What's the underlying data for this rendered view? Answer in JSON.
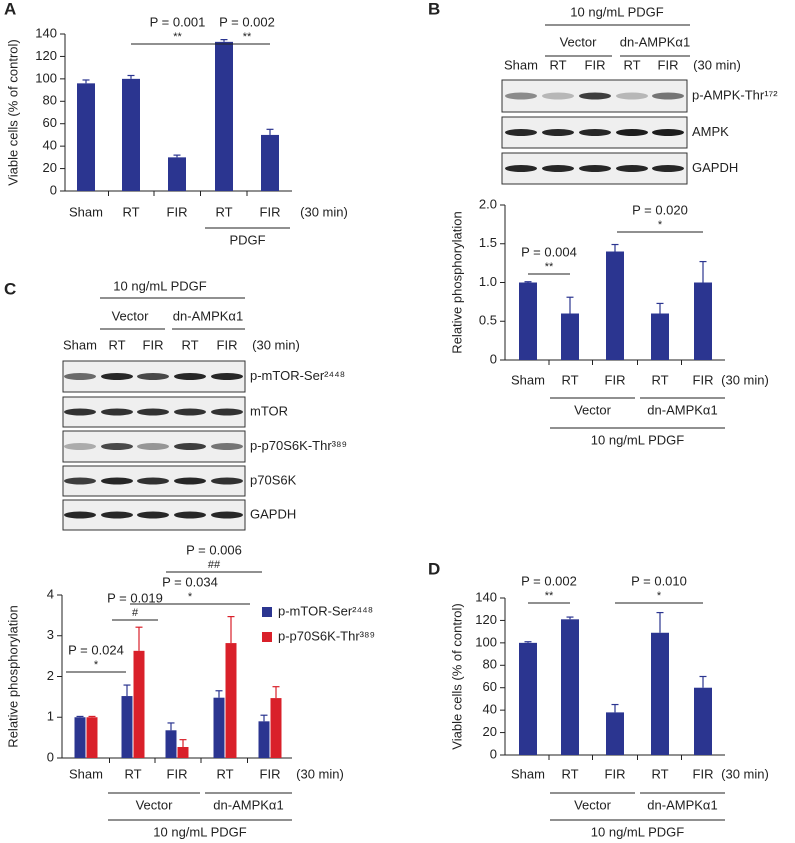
{
  "panel_labels": [
    "A",
    "B",
    "C",
    "D"
  ],
  "blots": [
    {
      "treatment": "10 ng/mL PDGF",
      "groups": [
        "Vector",
        "dn-AMPKα1"
      ],
      "lanes": [
        "Sham",
        "RT",
        "FIR",
        "RT",
        "FIR"
      ],
      "time": "(30 min)",
      "rows": [
        "p-AMPK-Thr¹⁷²",
        "AMPK",
        "GAPDH"
      ]
    },
    {
      "treatment": "10 ng/mL PDGF",
      "groups": [
        "Vector",
        "dn-AMPKα1"
      ],
      "lanes": [
        "Sham",
        "RT",
        "FIR",
        "RT",
        "FIR"
      ],
      "time": "(30 min)",
      "rows": [
        "p-mTOR-Ser²⁴⁴⁸",
        "mTOR",
        "p-p70S6K-Thr³⁸⁹",
        "p70S6K",
        "GAPDH"
      ]
    }
  ],
  "chart_data": [
    {
      "type": "bar",
      "ylabel": "Viable cells (% of control)",
      "categories": [
        "Sham",
        "RT",
        "FIR",
        "RT",
        "FIR"
      ],
      "x_note": "(30 min)",
      "groups": [
        "PDGF"
      ],
      "series": [
        {
          "name": null,
          "color": "#2b3590",
          "values": [
            96,
            100,
            30,
            133,
            50
          ],
          "errors": [
            3,
            3,
            2,
            2,
            5
          ]
        }
      ],
      "annotations": [
        {
          "text": "P = 0.001",
          "sig": "**"
        },
        {
          "text": "P = 0.002",
          "sig": "**"
        }
      ],
      "ylim": [
        0,
        140
      ],
      "yticks": [
        0,
        20,
        40,
        60,
        80,
        100,
        120,
        140
      ]
    },
    {
      "type": "bar",
      "ylabel": "Relative phosphorylation",
      "categories": [
        "Sham",
        "RT",
        "FIR",
        "RT",
        "FIR"
      ],
      "x_note": "(30 min)",
      "groups": [
        "Vector",
        "dn-AMPKα1",
        "10 ng/mL PDGF"
      ],
      "series": [
        {
          "name": null,
          "color": "#2b3590",
          "values": [
            1.0,
            0.6,
            1.4,
            0.6,
            1.0
          ],
          "errors": [
            0.01,
            0.21,
            0.09,
            0.13,
            0.27
          ]
        }
      ],
      "annotations": [
        {
          "text": "P = 0.004",
          "sig": "**"
        },
        {
          "text": "P = 0.020",
          "sig": "*"
        }
      ],
      "ylim": [
        0,
        2
      ],
      "yticks": [
        0,
        0.5,
        {
          "value": 1,
          "label": "1.0"
        },
        1.5,
        {
          "value": 2,
          "label": "2.0"
        }
      ]
    },
    {
      "type": "bar",
      "ylabel": "Relative phosphorylation",
      "categories": [
        "Sham",
        "RT",
        "FIR",
        "RT",
        "FIR"
      ],
      "x_note": "(30 min)",
      "groups": [
        "Vector",
        "dn-AMPKα1",
        "10 ng/mL PDGF"
      ],
      "series": [
        {
          "name": "p-mTOR-Ser²⁴⁴⁸",
          "color": "#2b3590",
          "values": [
            1.0,
            1.52,
            0.68,
            1.48,
            0.9
          ],
          "errors": [
            0.02,
            0.27,
            0.18,
            0.17,
            0.15
          ]
        },
        {
          "name": "p-p70S6K-Thr³⁸⁹",
          "color": "#d9202a",
          "values": [
            1.0,
            2.63,
            0.27,
            2.82,
            1.47
          ],
          "errors": [
            0.02,
            0.58,
            0.18,
            0.65,
            0.28
          ]
        }
      ],
      "annotations": [
        {
          "text": "P = 0.024",
          "sig": "*"
        },
        {
          "text": "P = 0.019",
          "sig": "#"
        },
        {
          "text": "P = 0.034",
          "sig": "*"
        },
        {
          "text": "P = 0.006",
          "sig": "##"
        }
      ],
      "ylim": [
        0,
        4
      ],
      "yticks": [
        0,
        1,
        2,
        3,
        4
      ]
    },
    {
      "type": "bar",
      "ylabel": "Viable cells (% of control)",
      "categories": [
        "Sham",
        "RT",
        "FIR",
        "RT",
        "FIR"
      ],
      "x_note": "(30 min)",
      "groups": [
        "Vector",
        "dn-AMPKα1",
        "10 ng/mL PDGF"
      ],
      "series": [
        {
          "name": null,
          "color": "#2b3590",
          "values": [
            100,
            121,
            38,
            109,
            60
          ],
          "errors": [
            1,
            2,
            7,
            18,
            10
          ]
        }
      ],
      "annotations": [
        {
          "text": "P = 0.002",
          "sig": "**"
        },
        {
          "text": "P = 0.010",
          "sig": "*"
        }
      ],
      "ylim": [
        0,
        140
      ],
      "yticks": [
        0,
        20,
        40,
        60,
        80,
        100,
        120,
        140
      ]
    }
  ]
}
